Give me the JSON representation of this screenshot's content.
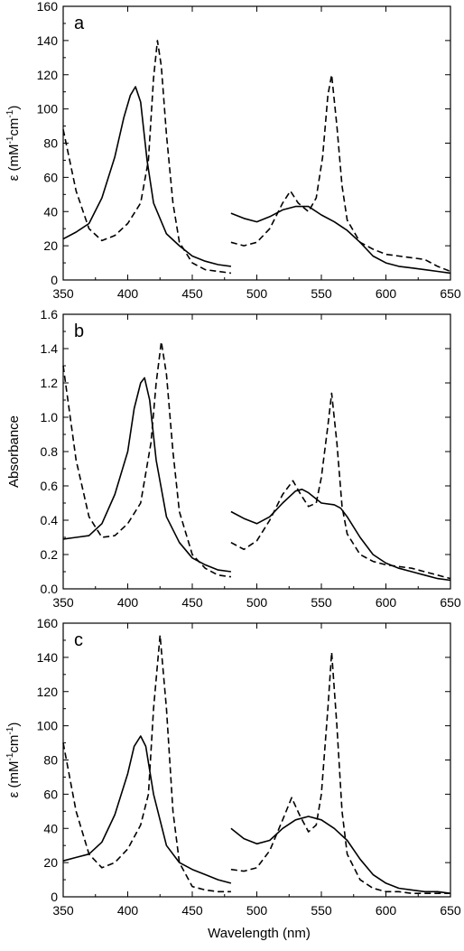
{
  "figure": {
    "xlabel": "Wavelength (nm)"
  },
  "chart_data": [
    {
      "type": "line",
      "panel_label": "a",
      "xlabel": "",
      "ylabel_prefix": "ε (mM",
      "ylabel_sup1": "-1",
      "ylabel_mid": "cm",
      "ylabel_sup2": "-1",
      "ylabel_suffix": ")",
      "xlim": [
        350,
        650
      ],
      "ylim": [
        0,
        160
      ],
      "xticks": [
        350,
        400,
        450,
        500,
        550,
        600,
        650
      ],
      "yticks": [
        0,
        20,
        40,
        60,
        80,
        100,
        120,
        140,
        160
      ],
      "ytick_labels": [
        "0",
        "20",
        "40",
        "60",
        "80",
        "100",
        "120",
        "140",
        "160"
      ],
      "grid": false,
      "series": [
        {
          "style": "solid",
          "segments": [
            {
              "x": [
                350,
                360,
                370,
                380,
                390,
                397,
                402,
                406,
                410,
                415,
                420,
                430,
                440,
                450,
                460,
                470,
                480
              ],
              "y": [
                24,
                28,
                33,
                48,
                72,
                95,
                108,
                113,
                104,
                70,
                45,
                27,
                20,
                14,
                11,
                9,
                8
              ]
            },
            {
              "x": [
                480,
                490,
                500,
                510,
                520,
                530,
                540,
                550,
                560,
                570,
                580,
                590,
                600,
                610,
                620,
                630,
                640,
                650
              ],
              "y": [
                39,
                36,
                34,
                37,
                41,
                43,
                43,
                38,
                34,
                29,
                22,
                14,
                10,
                8,
                7,
                6,
                5,
                4
              ]
            }
          ]
        },
        {
          "style": "dashed",
          "segments": [
            {
              "x": [
                350,
                360,
                370,
                380,
                390,
                400,
                410,
                416,
                420,
                423,
                426,
                430,
                435,
                440,
                450,
                460,
                470,
                480
              ],
              "y": [
                88,
                52,
                30,
                23,
                26,
                33,
                45,
                70,
                118,
                140,
                125,
                85,
                45,
                22,
                10,
                6,
                5,
                4
              ]
            },
            {
              "x": [
                480,
                490,
                500,
                510,
                520,
                526,
                532,
                540,
                546,
                551,
                555,
                558,
                562,
                566,
                570,
                580,
                590,
                600,
                610,
                620,
                630,
                640,
                650
              ],
              "y": [
                22,
                20,
                22,
                30,
                45,
                52,
                45,
                40,
                48,
                72,
                108,
                120,
                90,
                55,
                35,
                22,
                18,
                15,
                14,
                13,
                12,
                8,
                5
              ]
            }
          ]
        }
      ]
    },
    {
      "type": "line",
      "panel_label": "b",
      "xlabel": "",
      "ylabel_prefix": "Absorbance",
      "ylabel_sup1": "",
      "ylabel_mid": "",
      "ylabel_sup2": "",
      "ylabel_suffix": "",
      "xlim": [
        350,
        650
      ],
      "ylim": [
        0,
        1.6
      ],
      "xticks": [
        350,
        400,
        450,
        500,
        550,
        600,
        650
      ],
      "yticks": [
        0,
        0.2,
        0.4,
        0.6,
        0.8,
        1.0,
        1.2,
        1.4,
        1.6
      ],
      "ytick_labels": [
        "0.0",
        "0.2",
        "0.4",
        "0.6",
        "0.8",
        "1.0",
        "1.2",
        "1.4",
        "1.6"
      ],
      "grid": false,
      "series": [
        {
          "style": "solid",
          "segments": [
            {
              "x": [
                350,
                360,
                370,
                380,
                390,
                400,
                405,
                410,
                413,
                417,
                422,
                430,
                440,
                450,
                460,
                470,
                480
              ],
              "y": [
                0.29,
                0.3,
                0.31,
                0.38,
                0.55,
                0.8,
                1.05,
                1.2,
                1.23,
                1.1,
                0.75,
                0.42,
                0.27,
                0.18,
                0.14,
                0.11,
                0.1
              ]
            },
            {
              "x": [
                480,
                490,
                500,
                510,
                520,
                530,
                535,
                540,
                550,
                560,
                565,
                570,
                580,
                590,
                600,
                610,
                620,
                630,
                640,
                650
              ],
              "y": [
                0.45,
                0.41,
                0.38,
                0.42,
                0.5,
                0.57,
                0.58,
                0.56,
                0.5,
                0.49,
                0.47,
                0.42,
                0.3,
                0.2,
                0.15,
                0.12,
                0.1,
                0.08,
                0.06,
                0.05
              ]
            }
          ]
        },
        {
          "style": "dashed",
          "segments": [
            {
              "x": [
                350,
                360,
                370,
                380,
                390,
                400,
                410,
                418,
                422,
                426,
                430,
                435,
                440,
                450,
                460,
                470,
                480
              ],
              "y": [
                1.3,
                0.75,
                0.42,
                0.3,
                0.31,
                0.38,
                0.5,
                0.85,
                1.2,
                1.44,
                1.25,
                0.8,
                0.45,
                0.2,
                0.12,
                0.08,
                0.07
              ]
            },
            {
              "x": [
                480,
                490,
                500,
                510,
                520,
                528,
                534,
                540,
                546,
                550,
                555,
                558,
                562,
                566,
                570,
                580,
                590,
                600,
                610,
                620,
                630,
                640,
                650
              ],
              "y": [
                0.27,
                0.23,
                0.28,
                0.4,
                0.55,
                0.63,
                0.55,
                0.48,
                0.5,
                0.65,
                0.95,
                1.14,
                0.85,
                0.48,
                0.32,
                0.2,
                0.16,
                0.14,
                0.13,
                0.12,
                0.1,
                0.08,
                0.06
              ]
            }
          ]
        }
      ]
    },
    {
      "type": "line",
      "panel_label": "c",
      "xlabel": "Wavelength (nm)",
      "ylabel_prefix": "ε (mM",
      "ylabel_sup1": "-1",
      "ylabel_mid": "cm",
      "ylabel_sup2": "-1",
      "ylabel_suffix": ")",
      "xlim": [
        350,
        650
      ],
      "ylim": [
        0,
        160
      ],
      "xticks": [
        350,
        400,
        450,
        500,
        550,
        600,
        650
      ],
      "yticks": [
        0,
        20,
        40,
        60,
        80,
        100,
        120,
        140,
        160
      ],
      "ytick_labels": [
        "0",
        "20",
        "40",
        "60",
        "80",
        "100",
        "120",
        "140",
        "160"
      ],
      "grid": false,
      "series": [
        {
          "style": "solid",
          "segments": [
            {
              "x": [
                350,
                360,
                370,
                380,
                390,
                400,
                405,
                410,
                414,
                420,
                430,
                440,
                450,
                460,
                470,
                480
              ],
              "y": [
                21,
                23,
                25,
                32,
                48,
                72,
                88,
                94,
                88,
                60,
                30,
                20,
                16,
                13,
                10,
                8
              ]
            },
            {
              "x": [
                480,
                490,
                500,
                510,
                520,
                530,
                540,
                550,
                560,
                570,
                580,
                590,
                600,
                610,
                620,
                630,
                640,
                650
              ],
              "y": [
                40,
                34,
                31,
                33,
                40,
                45,
                47,
                45,
                40,
                33,
                22,
                13,
                8,
                5,
                4,
                3,
                3,
                2
              ]
            }
          ]
        },
        {
          "style": "dashed",
          "segments": [
            {
              "x": [
                350,
                360,
                370,
                380,
                390,
                400,
                410,
                416,
                420,
                425,
                430,
                435,
                440,
                450,
                460,
                470,
                480
              ],
              "y": [
                90,
                50,
                25,
                17,
                20,
                28,
                42,
                60,
                110,
                153,
                110,
                50,
                20,
                6,
                4,
                3,
                3
              ]
            },
            {
              "x": [
                480,
                490,
                500,
                510,
                520,
                527,
                533,
                540,
                546,
                550,
                555,
                558,
                562,
                566,
                570,
                580,
                590,
                600,
                610,
                620,
                630,
                640,
                650
              ],
              "y": [
                16,
                15,
                17,
                27,
                45,
                58,
                48,
                38,
                42,
                60,
                110,
                143,
                100,
                50,
                25,
                10,
                5,
                3,
                3,
                2,
                2,
                2,
                2
              ]
            }
          ]
        }
      ]
    }
  ]
}
